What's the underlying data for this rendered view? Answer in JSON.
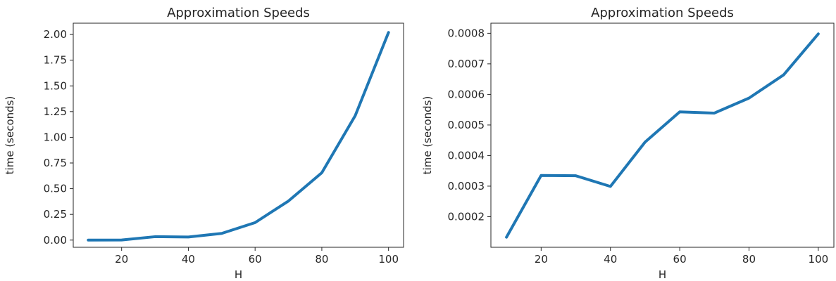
{
  "chart_data": [
    {
      "type": "line",
      "title": "Approximation Speeds",
      "xlabel": "H",
      "ylabel": "time (seconds)",
      "x": [
        10,
        20,
        30,
        40,
        50,
        60,
        70,
        80,
        90,
        100
      ],
      "series": [
        {
          "values": [
            0.0,
            0.001,
            0.033,
            0.03,
            0.065,
            0.17,
            0.38,
            0.655,
            1.21,
            2.02
          ]
        }
      ],
      "xlim": [
        5.5,
        104.5
      ],
      "ylim": [
        -0.07,
        2.11
      ],
      "xticks": [
        20,
        40,
        60,
        80,
        100
      ],
      "xtick_labels": [
        "20",
        "40",
        "60",
        "80",
        "100"
      ],
      "yticks": [
        0.0,
        0.25,
        0.5,
        0.75,
        1.0,
        1.25,
        1.5,
        1.75,
        2.0
      ],
      "ytick_labels": [
        "0.00",
        "0.25",
        "0.50",
        "0.75",
        "1.00",
        "1.25",
        "1.50",
        "1.75",
        "2.00"
      ],
      "grid": false,
      "line_color": "#1f77b4"
    },
    {
      "type": "line",
      "title": "Approximation Speeds",
      "xlabel": "H",
      "ylabel": "time (seconds)",
      "x": [
        10,
        20,
        30,
        40,
        50,
        60,
        70,
        80,
        90,
        100
      ],
      "series": [
        {
          "values": [
            0.000133,
            0.000335,
            0.000334,
            0.000299,
            0.000444,
            0.000543,
            0.000539,
            0.000588,
            0.000664,
            0.000798
          ]
        }
      ],
      "xlim": [
        5.5,
        104.5
      ],
      "ylim": [
        0.0001,
        0.000833
      ],
      "xticks": [
        20,
        40,
        60,
        80,
        100
      ],
      "xtick_labels": [
        "20",
        "40",
        "60",
        "80",
        "100"
      ],
      "yticks": [
        0.0002,
        0.0003,
        0.0004,
        0.0005,
        0.0006,
        0.0007,
        0.0008
      ],
      "ytick_labels": [
        "0.0002",
        "0.0003",
        "0.0004",
        "0.0005",
        "0.0006",
        "0.0007",
        "0.0008"
      ],
      "grid": false,
      "line_color": "#1f77b4"
    }
  ]
}
